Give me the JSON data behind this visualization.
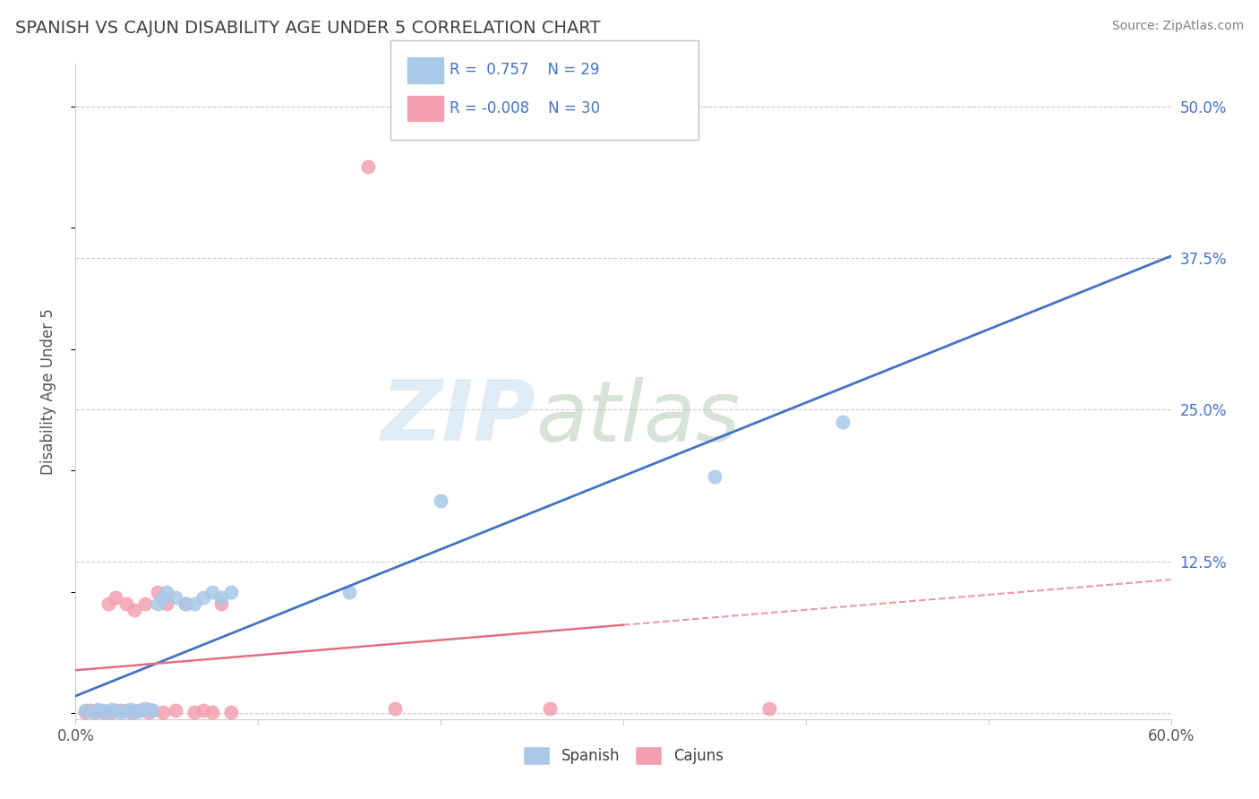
{
  "title": "SPANISH VS CAJUN DISABILITY AGE UNDER 5 CORRELATION CHART",
  "source_text": "Source: ZipAtlas.com",
  "ylabel": "Disability Age Under 5",
  "xlim": [
    0.0,
    0.6
  ],
  "ylim": [
    -0.005,
    0.535
  ],
  "plot_ylim": [
    0.0,
    0.5
  ],
  "xticks": [
    0.0,
    0.1,
    0.2,
    0.3,
    0.4,
    0.5,
    0.6
  ],
  "xticklabels": [
    "0.0%",
    "",
    "",
    "",
    "",
    "",
    "60.0%"
  ],
  "yticks_right": [
    0.0,
    0.125,
    0.25,
    0.375,
    0.5
  ],
  "yticklabels_right": [
    "",
    "12.5%",
    "25.0%",
    "37.5%",
    "50.0%"
  ],
  "spanish_R": 0.757,
  "spanish_N": 29,
  "cajun_R": -0.008,
  "cajun_N": 30,
  "spanish_color": "#a8c8e8",
  "cajun_color": "#f4a0b0",
  "spanish_line_color": "#4472c4",
  "cajun_line_color": "#e07080",
  "cajun_line_solid_end": 0.3,
  "legend_text_color": "#4472c4",
  "title_color": "#404040",
  "title_fontsize": 14,
  "background_color": "#ffffff",
  "grid_color": "#cccccc",
  "spanish_x": [
    0.005,
    0.01,
    0.012,
    0.015,
    0.018,
    0.02,
    0.022,
    0.025,
    0.028,
    0.03,
    0.032,
    0.035,
    0.038,
    0.04,
    0.042,
    0.045,
    0.048,
    0.05,
    0.055,
    0.06,
    0.065,
    0.07,
    0.075,
    0.08,
    0.085,
    0.15,
    0.2,
    0.35,
    0.42
  ],
  "spanish_y": [
    0.002,
    0.001,
    0.003,
    0.002,
    0.001,
    0.003,
    0.002,
    0.001,
    0.002,
    0.003,
    0.001,
    0.002,
    0.004,
    0.003,
    0.002,
    0.09,
    0.095,
    0.1,
    0.095,
    0.09,
    0.09,
    0.095,
    0.1,
    0.095,
    0.1,
    0.1,
    0.175,
    0.195,
    0.24
  ],
  "cajun_x": [
    0.005,
    0.008,
    0.01,
    0.012,
    0.015,
    0.018,
    0.02,
    0.022,
    0.025,
    0.028,
    0.03,
    0.032,
    0.035,
    0.038,
    0.04,
    0.042,
    0.045,
    0.048,
    0.05,
    0.055,
    0.06,
    0.065,
    0.07,
    0.075,
    0.08,
    0.085,
    0.16,
    0.175,
    0.26,
    0.38
  ],
  "cajun_y": [
    0.001,
    0.002,
    0.001,
    0.002,
    0.001,
    0.09,
    0.001,
    0.095,
    0.002,
    0.09,
    0.001,
    0.085,
    0.002,
    0.09,
    0.001,
    0.002,
    0.1,
    0.001,
    0.09,
    0.002,
    0.09,
    0.001,
    0.002,
    0.001,
    0.09,
    0.001,
    0.45,
    0.004,
    0.004,
    0.004
  ]
}
